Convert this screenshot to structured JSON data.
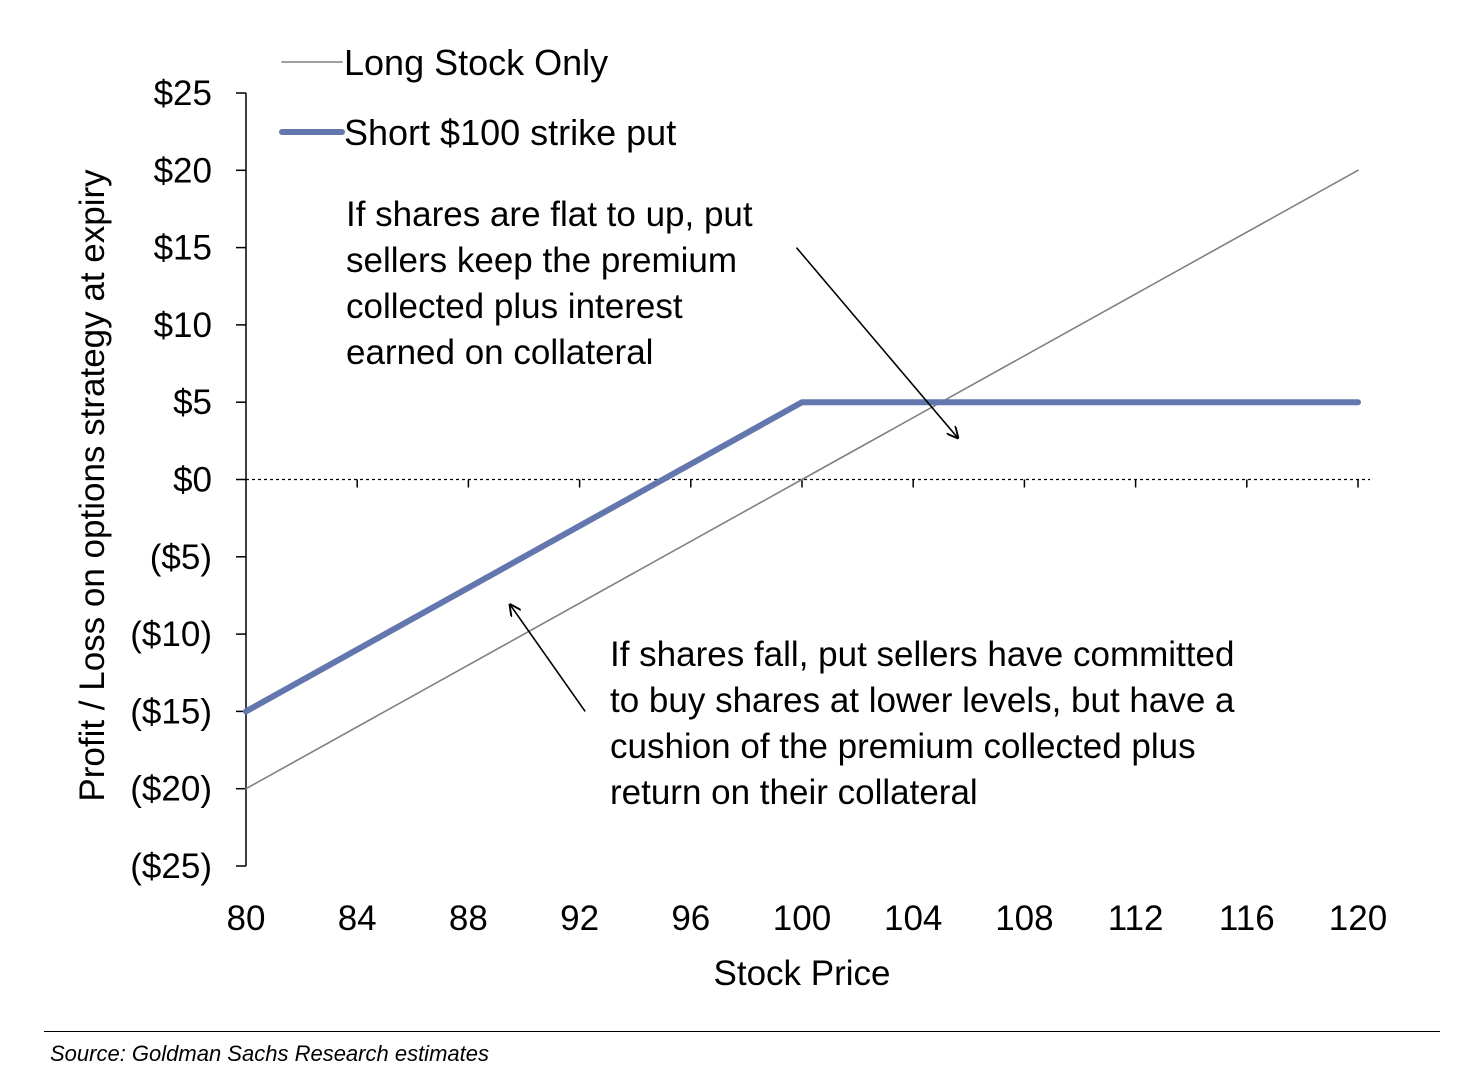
{
  "chart_data": {
    "type": "line",
    "xlabel": "Stock Price",
    "ylabel": "Profit / Loss on options strategy at expiry",
    "xlim": [
      80,
      120
    ],
    "ylim": [
      -25,
      25
    ],
    "x_ticks": [
      80,
      84,
      88,
      92,
      96,
      100,
      104,
      108,
      112,
      116,
      120
    ],
    "x_tick_labels": [
      "80",
      "84",
      "88",
      "92",
      "96",
      "100",
      "104",
      "108",
      "112",
      "116",
      "120"
    ],
    "y_ticks": [
      25,
      20,
      15,
      10,
      5,
      0,
      -5,
      -10,
      -15,
      -20,
      -25
    ],
    "y_tick_labels": [
      "$25",
      "$20",
      "$15",
      "$10",
      "$5",
      "$0",
      "($5)",
      "($10)",
      "($15)",
      "($20)",
      "($25)"
    ],
    "zero_line": "dashed",
    "grid": false,
    "legend_position": "top-left",
    "series": [
      {
        "name": "Long Stock Only",
        "color": "#808080",
        "x": [
          80,
          100,
          120
        ],
        "y": [
          -20,
          0,
          20
        ]
      },
      {
        "name": "Short $100 strike put",
        "color": "#6377AE",
        "x": [
          80,
          100,
          120
        ],
        "y": [
          -15,
          5,
          5
        ]
      }
    ],
    "annotations": [
      {
        "lines": [
          "If shares are flat to up, put",
          "sellers keep the premium",
          "collected plus interest",
          "earned on collateral"
        ],
        "arrow_from": [
          99.8,
          15
        ],
        "arrow_to": [
          105.6,
          2.7
        ]
      },
      {
        "lines": [
          "If shares fall, put sellers have committed",
          "to buy shares at lower levels, but have a",
          "cushion of the premium collected plus",
          "return on their collateral"
        ],
        "arrow_from": [
          92.2,
          -15
        ],
        "arrow_to": [
          89.5,
          -8.1
        ]
      }
    ]
  },
  "source": "Source: Goldman Sachs Research estimates"
}
